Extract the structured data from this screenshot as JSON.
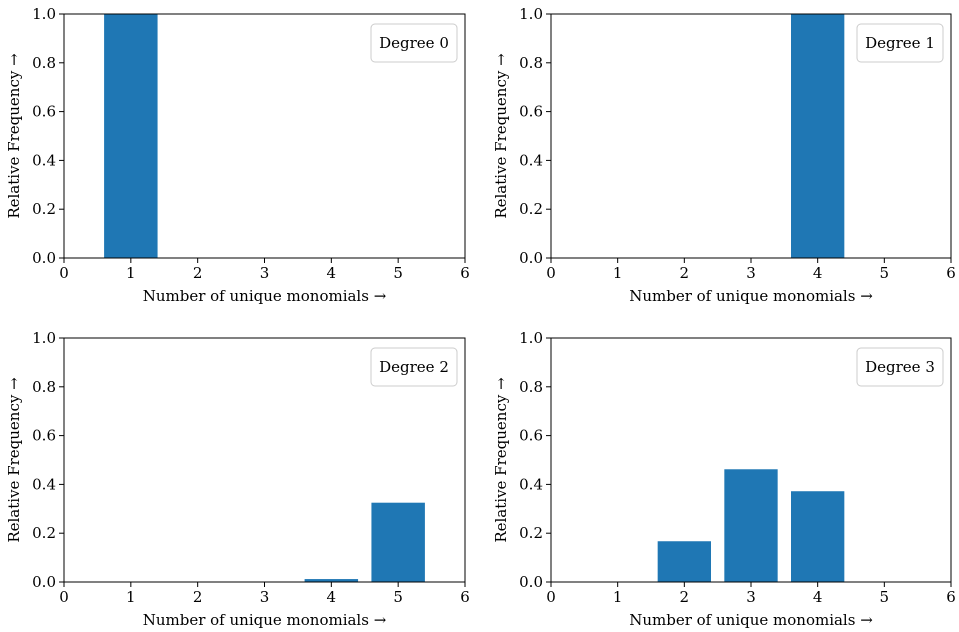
{
  "figure": {
    "background": "#ffffff",
    "bar_color": "#1f77b4"
  },
  "chart_data": [
    {
      "type": "bar",
      "legend": "Degree 0",
      "legend_position": "top-right",
      "xlabel": "Number of unique monomials →",
      "ylabel": "Relative Frequency →",
      "xlim": [
        0,
        6
      ],
      "ylim": [
        0,
        1.0
      ],
      "xticks": [
        0,
        1,
        2,
        3,
        4,
        5,
        6
      ],
      "yticks": [
        "0.0",
        "0.2",
        "0.4",
        "0.6",
        "0.8",
        "1.0"
      ],
      "grid": false,
      "x": [
        1,
        2,
        3,
        4,
        5
      ],
      "values": [
        1.0,
        0.0,
        0.0,
        0.0,
        0.0
      ]
    },
    {
      "type": "bar",
      "legend": "Degree 1",
      "legend_position": "top-right",
      "xlabel": "Number of unique monomials →",
      "ylabel": "Relative Frequency →",
      "xlim": [
        0,
        6
      ],
      "ylim": [
        0,
        1.0
      ],
      "xticks": [
        0,
        1,
        2,
        3,
        4,
        5,
        6
      ],
      "yticks": [
        "0.0",
        "0.2",
        "0.4",
        "0.6",
        "0.8",
        "1.0"
      ],
      "grid": false,
      "x": [
        1,
        2,
        3,
        4,
        5
      ],
      "values": [
        0.0,
        0.0,
        0.0,
        1.0,
        0.0
      ]
    },
    {
      "type": "bar",
      "legend": "Degree 2",
      "legend_position": "top-right",
      "xlabel": "Number of unique monomials →",
      "ylabel": "Relative Frequency →",
      "xlim": [
        0,
        6
      ],
      "ylim": [
        0,
        1.0
      ],
      "xticks": [
        0,
        1,
        2,
        3,
        4,
        5,
        6
      ],
      "yticks": [
        "0.0",
        "0.2",
        "0.4",
        "0.6",
        "0.8",
        "1.0"
      ],
      "grid": false,
      "x": [
        1,
        2,
        3,
        4,
        5
      ],
      "values": [
        0.0,
        0.0,
        0.0,
        0.012,
        0.325
      ]
    },
    {
      "type": "bar",
      "legend": "Degree 3",
      "legend_position": "top-right",
      "xlabel": "Number of unique monomials →",
      "ylabel": "Relative Frequency →",
      "xlim": [
        0,
        6
      ],
      "ylim": [
        0,
        1.0
      ],
      "xticks": [
        0,
        1,
        2,
        3,
        4,
        5,
        6
      ],
      "yticks": [
        "0.0",
        "0.2",
        "0.4",
        "0.6",
        "0.8",
        "1.0"
      ],
      "grid": false,
      "x": [
        1,
        2,
        3,
        4,
        5
      ],
      "values": [
        0.0,
        0.167,
        0.462,
        0.372,
        0.0
      ]
    }
  ]
}
